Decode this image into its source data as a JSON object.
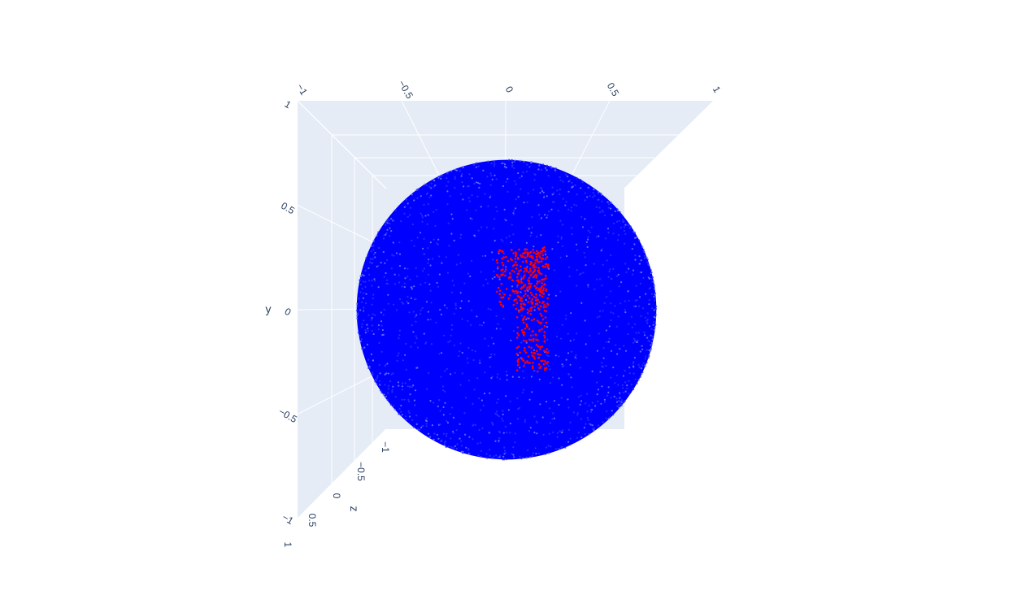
{
  "chart_data": {
    "type": "scatter",
    "subtype": "scatter3d",
    "title": "",
    "colors": {
      "scene_bg": "#e5ecf6",
      "grid": "#ffffff",
      "sphere_points": "#0000ff",
      "highlight_points": "#ff0000",
      "text": "#2a3f5f"
    },
    "axes": {
      "x": {
        "title": "",
        "range": [
          -1,
          1
        ],
        "tick_labels": [
          "−1",
          "−0.5",
          "0",
          "0.5",
          "1"
        ]
      },
      "y": {
        "title": "y",
        "range": [
          -1,
          1
        ],
        "tick_labels": [
          "1",
          "0.5",
          "0",
          "−0.5",
          "−1"
        ]
      },
      "z": {
        "title": "z",
        "range": [
          -1,
          1
        ],
        "tick_labels": [
          "−1",
          "−0.5",
          "0",
          "0.5",
          "1"
        ]
      }
    },
    "grid": true,
    "legend": "none",
    "series": [
      {
        "description_marker": "sphere",
        "shape": "sphere surface point cloud",
        "center": [
          0,
          0,
          0
        ],
        "radius": 0.72,
        "approx_point_count": 6000,
        "color": "#0000ff"
      },
      {
        "description_marker": "digit",
        "shape": "digit 1 region on sphere front face",
        "x_range": [
          -0.05,
          0.2
        ],
        "y_range": [
          -0.3,
          0.3
        ],
        "approx_point_count": 500,
        "color": "#ff0000"
      }
    ]
  }
}
